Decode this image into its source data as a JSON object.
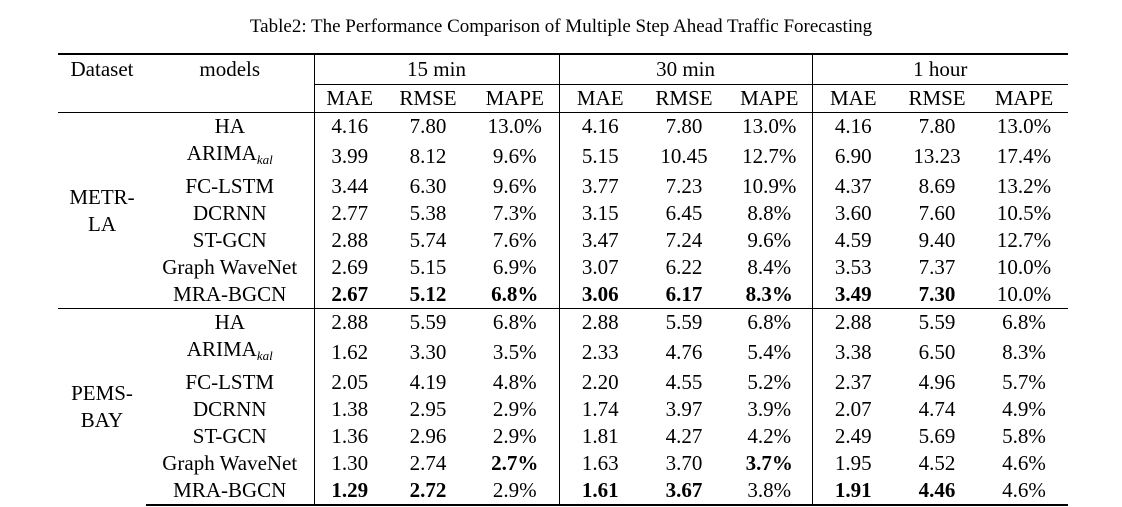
{
  "caption": "Table2: The Performance Comparison of Multiple Step Ahead Traffic Forecasting",
  "headers": {
    "dataset": "Dataset",
    "models": "models",
    "horizons": [
      "15 min",
      "30 min",
      "1 hour"
    ],
    "metrics": [
      "MAE",
      "RMSE",
      "MAPE"
    ]
  },
  "datasets": [
    {
      "name_line1": "METR-",
      "name_line2": "LA",
      "rows": [
        {
          "model": "HA",
          "model_sub": "",
          "cells": [
            "4.16",
            "7.80",
            "13.0%",
            "4.16",
            "7.80",
            "13.0%",
            "4.16",
            "7.80",
            "13.0%"
          ],
          "bold": [
            false,
            false,
            false,
            false,
            false,
            false,
            false,
            false,
            false
          ]
        },
        {
          "model": "ARIMA",
          "model_sub": "kal",
          "cells": [
            "3.99",
            "8.12",
            "9.6%",
            "5.15",
            "10.45",
            "12.7%",
            "6.90",
            "13.23",
            "17.4%"
          ],
          "bold": [
            false,
            false,
            false,
            false,
            false,
            false,
            false,
            false,
            false
          ]
        },
        {
          "model": "FC-LSTM",
          "model_sub": "",
          "cells": [
            "3.44",
            "6.30",
            "9.6%",
            "3.77",
            "7.23",
            "10.9%",
            "4.37",
            "8.69",
            "13.2%"
          ],
          "bold": [
            false,
            false,
            false,
            false,
            false,
            false,
            false,
            false,
            false
          ]
        },
        {
          "model": "DCRNN",
          "model_sub": "",
          "cells": [
            "2.77",
            "5.38",
            "7.3%",
            "3.15",
            "6.45",
            "8.8%",
            "3.60",
            "7.60",
            "10.5%"
          ],
          "bold": [
            false,
            false,
            false,
            false,
            false,
            false,
            false,
            false,
            false
          ]
        },
        {
          "model": "ST-GCN",
          "model_sub": "",
          "cells": [
            "2.88",
            "5.74",
            "7.6%",
            "3.47",
            "7.24",
            "9.6%",
            "4.59",
            "9.40",
            "12.7%"
          ],
          "bold": [
            false,
            false,
            false,
            false,
            false,
            false,
            false,
            false,
            false
          ]
        },
        {
          "model": "Graph WaveNet",
          "model_sub": "",
          "cells": [
            "2.69",
            "5.15",
            "6.9%",
            "3.07",
            "6.22",
            "8.4%",
            "3.53",
            "7.37",
            "10.0%"
          ],
          "bold": [
            false,
            false,
            false,
            false,
            false,
            false,
            false,
            false,
            false
          ]
        },
        {
          "model": "MRA-BGCN",
          "model_sub": "",
          "cells": [
            "2.67",
            "5.12",
            "6.8%",
            "3.06",
            "6.17",
            "8.3%",
            "3.49",
            "7.30",
            "10.0%"
          ],
          "bold": [
            true,
            true,
            true,
            true,
            true,
            true,
            true,
            true,
            false
          ]
        }
      ]
    },
    {
      "name_line1": "PEMS-",
      "name_line2": "BAY",
      "rows": [
        {
          "model": "HA",
          "model_sub": "",
          "cells": [
            "2.88",
            "5.59",
            "6.8%",
            "2.88",
            "5.59",
            "6.8%",
            "2.88",
            "5.59",
            "6.8%"
          ],
          "bold": [
            false,
            false,
            false,
            false,
            false,
            false,
            false,
            false,
            false
          ]
        },
        {
          "model": "ARIMA",
          "model_sub": "kal",
          "cells": [
            "1.62",
            "3.30",
            "3.5%",
            "2.33",
            "4.76",
            "5.4%",
            "3.38",
            "6.50",
            "8.3%"
          ],
          "bold": [
            false,
            false,
            false,
            false,
            false,
            false,
            false,
            false,
            false
          ]
        },
        {
          "model": "FC-LSTM",
          "model_sub": "",
          "cells": [
            "2.05",
            "4.19",
            "4.8%",
            "2.20",
            "4.55",
            "5.2%",
            "2.37",
            "4.96",
            "5.7%"
          ],
          "bold": [
            false,
            false,
            false,
            false,
            false,
            false,
            false,
            false,
            false
          ]
        },
        {
          "model": "DCRNN",
          "model_sub": "",
          "cells": [
            "1.38",
            "2.95",
            "2.9%",
            "1.74",
            "3.97",
            "3.9%",
            "2.07",
            "4.74",
            "4.9%"
          ],
          "bold": [
            false,
            false,
            false,
            false,
            false,
            false,
            false,
            false,
            false
          ]
        },
        {
          "model": "ST-GCN",
          "model_sub": "",
          "cells": [
            "1.36",
            "2.96",
            "2.9%",
            "1.81",
            "4.27",
            "4.2%",
            "2.49",
            "5.69",
            "5.8%"
          ],
          "bold": [
            false,
            false,
            false,
            false,
            false,
            false,
            false,
            false,
            false
          ]
        },
        {
          "model": "Graph WaveNet",
          "model_sub": "",
          "cells": [
            "1.30",
            "2.74",
            "2.7%",
            "1.63",
            "3.70",
            "3.7%",
            "1.95",
            "4.52",
            "4.6%"
          ],
          "bold": [
            false,
            false,
            true,
            false,
            false,
            true,
            false,
            false,
            false
          ]
        },
        {
          "model": "MRA-BGCN",
          "model_sub": "",
          "cells": [
            "1.29",
            "2.72",
            "2.9%",
            "1.61",
            "3.67",
            "3.8%",
            "1.91",
            "4.46",
            "4.6%"
          ],
          "bold": [
            true,
            true,
            false,
            true,
            true,
            false,
            true,
            true,
            false
          ]
        }
      ]
    }
  ]
}
